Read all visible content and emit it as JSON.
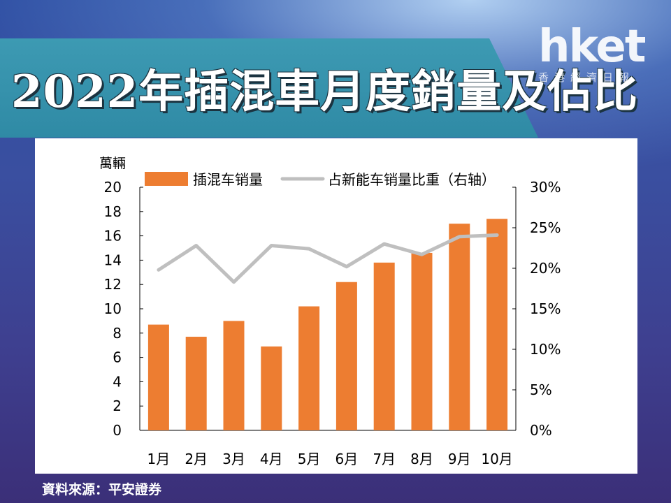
{
  "header": {
    "title": "2022年插混車月度銷量及佔比",
    "logo": "hket",
    "logo_sub": "香港經濟日報"
  },
  "source": "資料來源：平安證券",
  "colors": {
    "bar": "#ed7d31",
    "line": "#bfbfbf",
    "banner": "#3592ad"
  },
  "chart_data": {
    "type": "bar",
    "y_unit_label": "萬輛",
    "categories": [
      "1月",
      "2月",
      "3月",
      "4月",
      "5月",
      "6月",
      "7月",
      "8月",
      "9月",
      "10月"
    ],
    "series": [
      {
        "name": "插混车销量",
        "type": "bar",
        "axis": "left",
        "values": [
          8.7,
          7.7,
          9.0,
          6.9,
          10.2,
          12.2,
          13.8,
          14.6,
          17.0,
          17.4
        ]
      },
      {
        "name": "占新能车销量比重（右轴）",
        "type": "line",
        "axis": "right",
        "values": [
          19.8,
          22.8,
          18.3,
          22.8,
          22.4,
          20.2,
          23.0,
          21.7,
          23.9,
          24.1
        ]
      }
    ],
    "y_left": {
      "min": 0,
      "max": 20,
      "ticks": [
        "0",
        "2",
        "4",
        "6",
        "8",
        "10",
        "12",
        "14",
        "16",
        "18",
        "20"
      ]
    },
    "y_right": {
      "min": 0,
      "max": 30,
      "ticks": [
        "0%",
        "5%",
        "10%",
        "15%",
        "20%",
        "25%",
        "30%"
      ]
    },
    "legend_position": "top"
  }
}
